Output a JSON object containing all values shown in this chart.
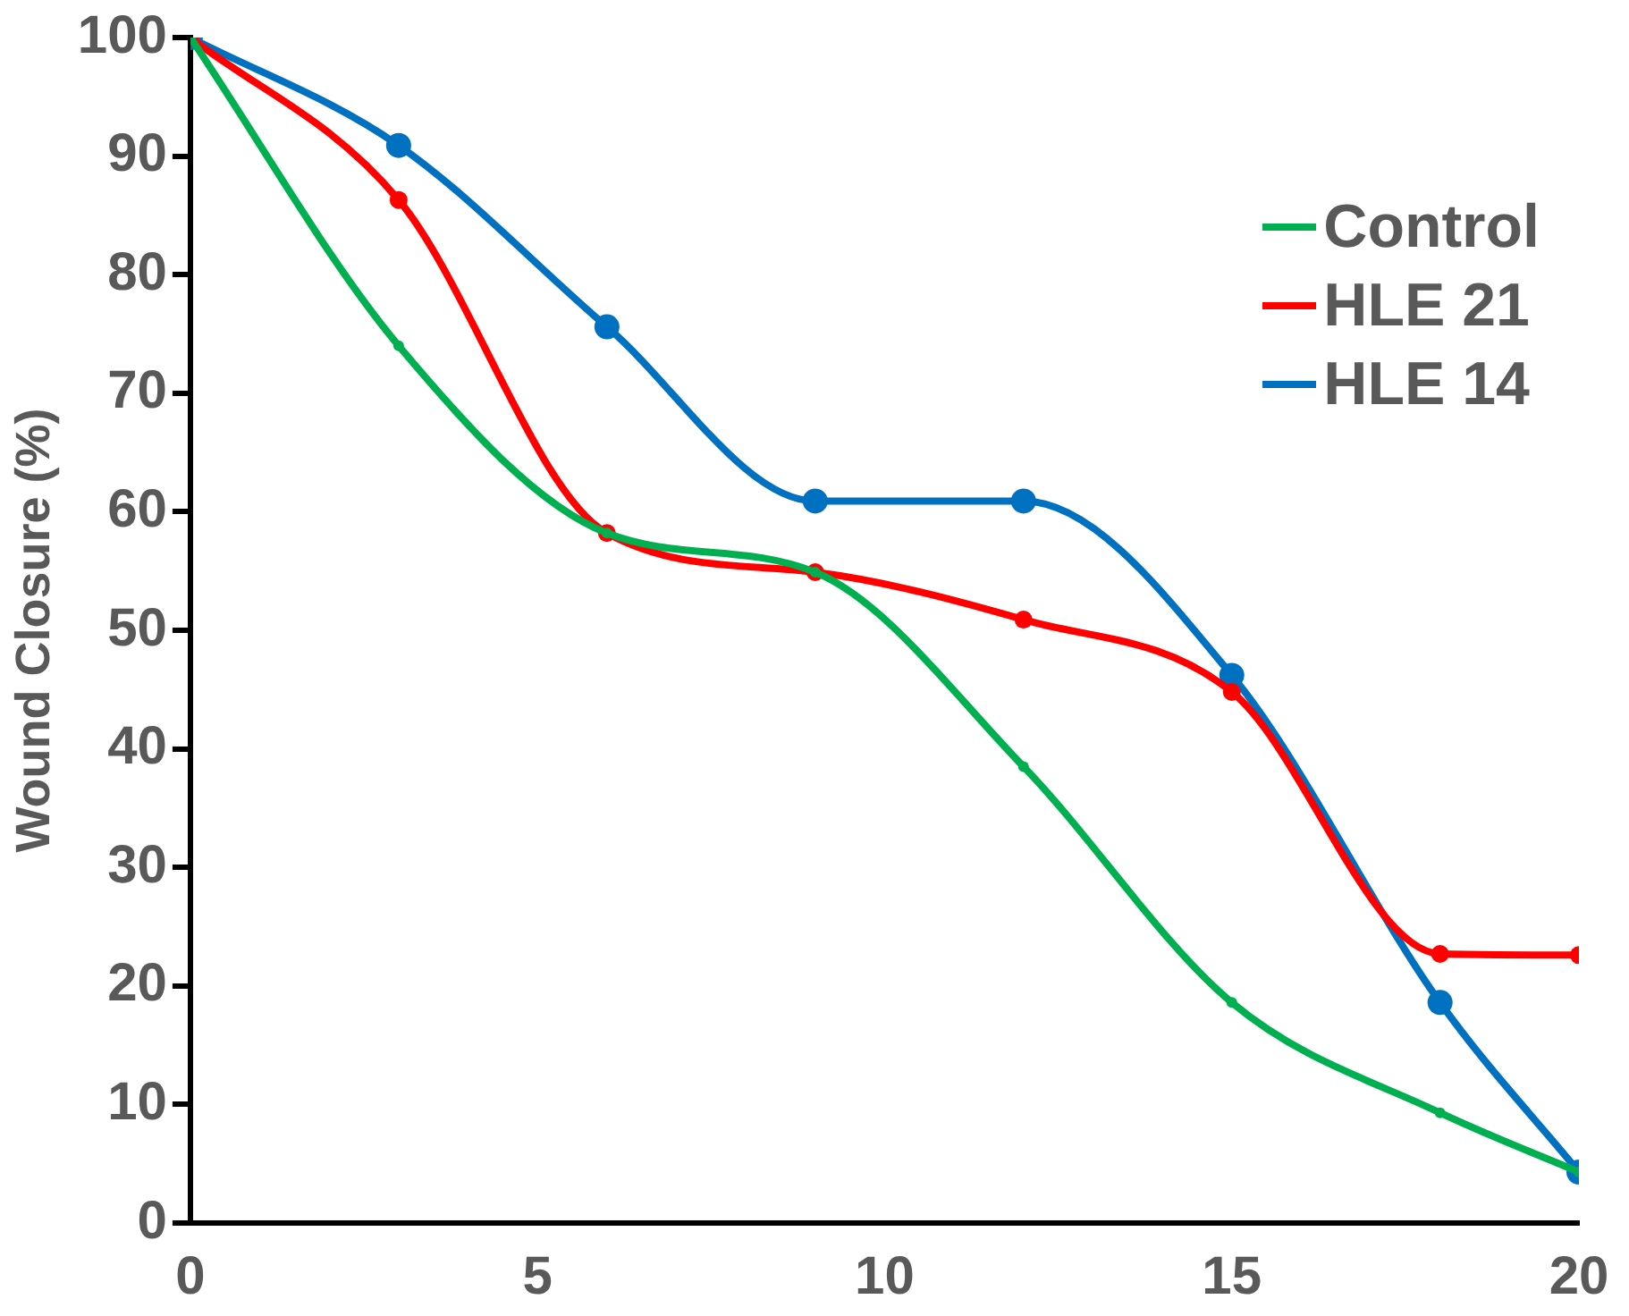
{
  "chart_data": {
    "type": "line",
    "ylabel": "Wound Closure (%)",
    "x": [
      0,
      3,
      6,
      9,
      12,
      15,
      18,
      20
    ],
    "series": [
      {
        "name": "Control",
        "color": "#00b050",
        "values": [
          100,
          74,
          58.2,
          54.9,
          38.5,
          18.6,
          9.3,
          4.3
        ]
      },
      {
        "name": "HLE 21",
        "color": "#ff0000",
        "values": [
          100,
          86.3,
          58.2,
          54.9,
          50.9,
          44.8,
          22.7,
          22.6
        ]
      },
      {
        "name": "HLE 14",
        "color": "#0070c0",
        "values": [
          100,
          90.9,
          75.6,
          60.9,
          60.9,
          46.2,
          18.6,
          4.3
        ]
      }
    ],
    "xlim": [
      0,
      20
    ],
    "xticks": [
      0,
      5,
      10,
      15,
      20
    ],
    "ylim": [
      0,
      100
    ],
    "yticks": [
      0,
      10,
      20,
      30,
      40,
      50,
      60,
      70,
      80,
      90,
      100
    ],
    "grid": false,
    "legend": "top right",
    "marker": "circle",
    "line_style": "solid"
  }
}
